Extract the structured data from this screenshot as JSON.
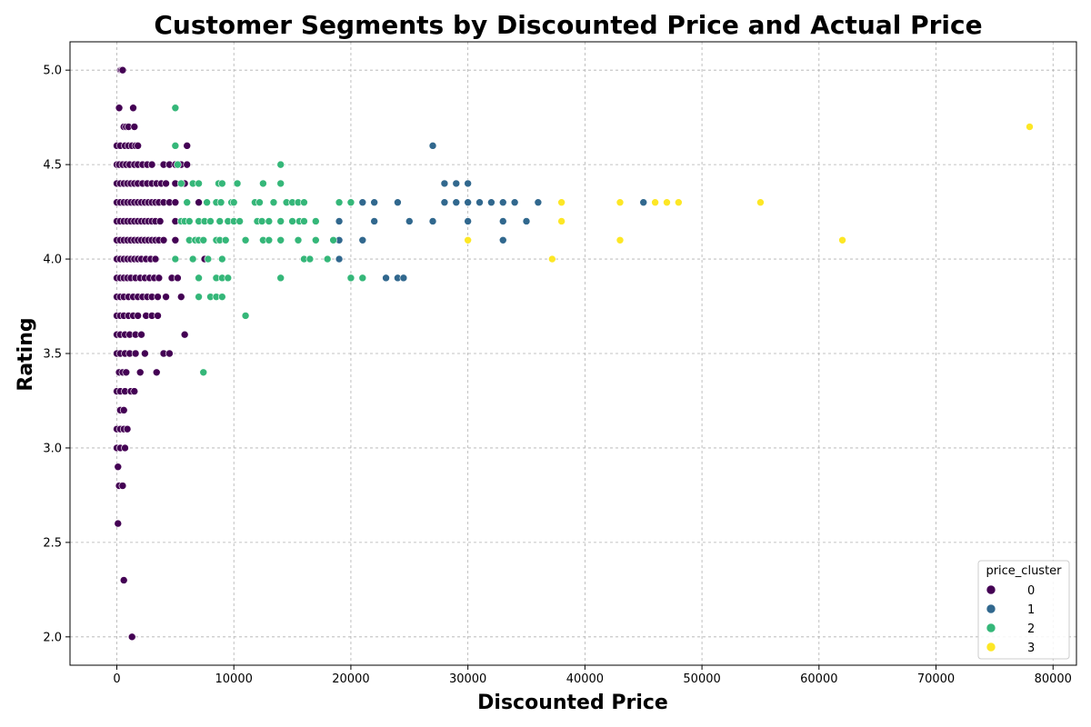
{
  "chart_data": {
    "type": "scatter",
    "title": "Customer Segments by Discounted Price and Actual Price",
    "xlabel": "Discounted Price",
    "ylabel": "Rating",
    "xlim": [
      -4000,
      82000
    ],
    "ylim": [
      1.85,
      5.15
    ],
    "xticks": [
      0,
      10000,
      20000,
      30000,
      40000,
      50000,
      60000,
      70000,
      80000
    ],
    "yticks": [
      2.0,
      2.5,
      3.0,
      3.5,
      4.0,
      4.5,
      5.0
    ],
    "xtick_labels": [
      "0",
      "10000",
      "20000",
      "30000",
      "40000",
      "50000",
      "60000",
      "70000",
      "80000"
    ],
    "ytick_labels": [
      "2.0",
      "2.5",
      "3.0",
      "3.5",
      "4.0",
      "4.5",
      "5.0"
    ],
    "grid": true,
    "legend": {
      "title": "price_cluster",
      "placement": "bottom-right"
    },
    "series": [
      {
        "name": "0",
        "color": "#440154",
        "points": [
          [
            300,
            5.0
          ],
          [
            400,
            5.0
          ],
          [
            500,
            5.0
          ],
          [
            200,
            4.8
          ],
          [
            1400,
            4.8
          ],
          [
            600,
            4.7
          ],
          [
            800,
            4.7
          ],
          [
            1000,
            4.7
          ],
          [
            1500,
            4.7
          ],
          [
            0,
            4.6
          ],
          [
            300,
            4.6
          ],
          [
            700,
            4.6
          ],
          [
            1000,
            4.6
          ],
          [
            1300,
            4.6
          ],
          [
            1600,
            4.6
          ],
          [
            1800,
            4.6
          ],
          [
            6000,
            4.6
          ],
          [
            0,
            4.5
          ],
          [
            200,
            4.5
          ],
          [
            500,
            4.5
          ],
          [
            800,
            4.5
          ],
          [
            1100,
            4.5
          ],
          [
            1500,
            4.5
          ],
          [
            1800,
            4.5
          ],
          [
            2200,
            4.5
          ],
          [
            2600,
            4.5
          ],
          [
            3000,
            4.5
          ],
          [
            4000,
            4.5
          ],
          [
            4500,
            4.5
          ],
          [
            5000,
            4.5
          ],
          [
            5500,
            4.5
          ],
          [
            6000,
            4.5
          ],
          [
            0,
            4.4
          ],
          [
            300,
            4.4
          ],
          [
            600,
            4.4
          ],
          [
            900,
            4.4
          ],
          [
            1200,
            4.4
          ],
          [
            1500,
            4.4
          ],
          [
            1800,
            4.4
          ],
          [
            2200,
            4.4
          ],
          [
            2600,
            4.4
          ],
          [
            3000,
            4.4
          ],
          [
            3400,
            4.4
          ],
          [
            3800,
            4.4
          ],
          [
            4200,
            4.4
          ],
          [
            5000,
            4.4
          ],
          [
            5800,
            4.4
          ],
          [
            6500,
            4.4
          ],
          [
            0,
            4.3
          ],
          [
            300,
            4.3
          ],
          [
            600,
            4.3
          ],
          [
            900,
            4.3
          ],
          [
            1200,
            4.3
          ],
          [
            1500,
            4.3
          ],
          [
            1800,
            4.3
          ],
          [
            2100,
            4.3
          ],
          [
            2400,
            4.3
          ],
          [
            2700,
            4.3
          ],
          [
            3000,
            4.3
          ],
          [
            3300,
            4.3
          ],
          [
            3600,
            4.3
          ],
          [
            4000,
            4.3
          ],
          [
            4500,
            4.3
          ],
          [
            5000,
            4.3
          ],
          [
            6000,
            4.3
          ],
          [
            7000,
            4.3
          ],
          [
            0,
            4.2
          ],
          [
            300,
            4.2
          ],
          [
            600,
            4.2
          ],
          [
            900,
            4.2
          ],
          [
            1200,
            4.2
          ],
          [
            1500,
            4.2
          ],
          [
            1800,
            4.2
          ],
          [
            2100,
            4.2
          ],
          [
            2400,
            4.2
          ],
          [
            2700,
            4.2
          ],
          [
            3000,
            4.2
          ],
          [
            3300,
            4.2
          ],
          [
            3700,
            4.2
          ],
          [
            5000,
            4.2
          ],
          [
            0,
            4.1
          ],
          [
            300,
            4.1
          ],
          [
            600,
            4.1
          ],
          [
            900,
            4.1
          ],
          [
            1200,
            4.1
          ],
          [
            1500,
            4.1
          ],
          [
            1800,
            4.1
          ],
          [
            2100,
            4.1
          ],
          [
            2400,
            4.1
          ],
          [
            2700,
            4.1
          ],
          [
            3000,
            4.1
          ],
          [
            3300,
            4.1
          ],
          [
            3600,
            4.1
          ],
          [
            4000,
            4.1
          ],
          [
            5000,
            4.1
          ],
          [
            0,
            4.0
          ],
          [
            300,
            4.0
          ],
          [
            600,
            4.0
          ],
          [
            900,
            4.0
          ],
          [
            1200,
            4.0
          ],
          [
            1500,
            4.0
          ],
          [
            1800,
            4.0
          ],
          [
            2100,
            4.0
          ],
          [
            2500,
            4.0
          ],
          [
            2900,
            4.0
          ],
          [
            3300,
            4.0
          ],
          [
            7500,
            4.0
          ],
          [
            0,
            3.9
          ],
          [
            300,
            3.9
          ],
          [
            600,
            3.9
          ],
          [
            900,
            3.9
          ],
          [
            1200,
            3.9
          ],
          [
            1600,
            3.9
          ],
          [
            2000,
            3.9
          ],
          [
            2400,
            3.9
          ],
          [
            2800,
            3.9
          ],
          [
            3200,
            3.9
          ],
          [
            3600,
            3.9
          ],
          [
            4700,
            3.9
          ],
          [
            5200,
            3.9
          ],
          [
            0,
            3.8
          ],
          [
            300,
            3.8
          ],
          [
            600,
            3.8
          ],
          [
            1000,
            3.8
          ],
          [
            1400,
            3.8
          ],
          [
            1800,
            3.8
          ],
          [
            2200,
            3.8
          ],
          [
            2600,
            3.8
          ],
          [
            3000,
            3.8
          ],
          [
            3500,
            3.8
          ],
          [
            4200,
            3.8
          ],
          [
            5500,
            3.8
          ],
          [
            0,
            3.7
          ],
          [
            300,
            3.7
          ],
          [
            600,
            3.7
          ],
          [
            1000,
            3.7
          ],
          [
            1400,
            3.7
          ],
          [
            1800,
            3.7
          ],
          [
            2500,
            3.7
          ],
          [
            3000,
            3.7
          ],
          [
            3500,
            3.7
          ],
          [
            0,
            3.6
          ],
          [
            300,
            3.6
          ],
          [
            700,
            3.6
          ],
          [
            1100,
            3.6
          ],
          [
            1600,
            3.6
          ],
          [
            2100,
            3.6
          ],
          [
            5800,
            3.6
          ],
          [
            0,
            3.5
          ],
          [
            300,
            3.5
          ],
          [
            700,
            3.5
          ],
          [
            1100,
            3.5
          ],
          [
            1600,
            3.5
          ],
          [
            2400,
            3.5
          ],
          [
            4000,
            3.5
          ],
          [
            4500,
            3.5
          ],
          [
            200,
            3.4
          ],
          [
            500,
            3.4
          ],
          [
            800,
            3.4
          ],
          [
            2000,
            3.4
          ],
          [
            3400,
            3.4
          ],
          [
            0,
            3.3
          ],
          [
            300,
            3.3
          ],
          [
            700,
            3.3
          ],
          [
            1200,
            3.3
          ],
          [
            1500,
            3.3
          ],
          [
            0,
            3.1
          ],
          [
            300,
            3.1
          ],
          [
            600,
            3.1
          ],
          [
            900,
            3.1
          ],
          [
            300,
            3.2
          ],
          [
            600,
            3.2
          ],
          [
            0,
            3.0
          ],
          [
            300,
            3.0
          ],
          [
            700,
            3.0
          ],
          [
            100,
            2.9
          ],
          [
            200,
            2.8
          ],
          [
            500,
            2.8
          ],
          [
            100,
            2.6
          ],
          [
            600,
            2.3
          ],
          [
            1300,
            2.0
          ]
        ]
      },
      {
        "name": "1",
        "color": "#31688e",
        "points": [
          [
            27000,
            4.6
          ],
          [
            28000,
            4.4
          ],
          [
            29000,
            4.4
          ],
          [
            30000,
            4.4
          ],
          [
            14500,
            4.3
          ],
          [
            21000,
            4.3
          ],
          [
            22000,
            4.3
          ],
          [
            24000,
            4.3
          ],
          [
            28000,
            4.3
          ],
          [
            29000,
            4.3
          ],
          [
            30000,
            4.3
          ],
          [
            31000,
            4.3
          ],
          [
            32000,
            4.3
          ],
          [
            33000,
            4.3
          ],
          [
            34000,
            4.3
          ],
          [
            36000,
            4.3
          ],
          [
            45000,
            4.3
          ],
          [
            19000,
            4.2
          ],
          [
            22000,
            4.2
          ],
          [
            25000,
            4.2
          ],
          [
            27000,
            4.2
          ],
          [
            30000,
            4.2
          ],
          [
            33000,
            4.2
          ],
          [
            35000,
            4.2
          ],
          [
            19000,
            4.1
          ],
          [
            21000,
            4.1
          ],
          [
            33000,
            4.1
          ],
          [
            19000,
            4.0
          ],
          [
            23000,
            3.9
          ],
          [
            24000,
            3.9
          ],
          [
            24500,
            3.9
          ]
        ]
      },
      {
        "name": "2",
        "color": "#35b779",
        "points": [
          [
            5000,
            4.8
          ],
          [
            5000,
            4.6
          ],
          [
            14000,
            4.5
          ],
          [
            5200,
            4.5
          ],
          [
            5500,
            4.4
          ],
          [
            6500,
            4.4
          ],
          [
            7000,
            4.4
          ],
          [
            8700,
            4.4
          ],
          [
            9000,
            4.4
          ],
          [
            10300,
            4.4
          ],
          [
            12500,
            4.4
          ],
          [
            14000,
            4.4
          ],
          [
            6000,
            4.3
          ],
          [
            7700,
            4.3
          ],
          [
            8500,
            4.3
          ],
          [
            8900,
            4.3
          ],
          [
            9800,
            4.3
          ],
          [
            10000,
            4.3
          ],
          [
            11800,
            4.3
          ],
          [
            12200,
            4.3
          ],
          [
            13400,
            4.3
          ],
          [
            14500,
            4.3
          ],
          [
            15000,
            4.3
          ],
          [
            15500,
            4.3
          ],
          [
            16000,
            4.3
          ],
          [
            19000,
            4.3
          ],
          [
            20000,
            4.3
          ],
          [
            5500,
            4.2
          ],
          [
            5800,
            4.2
          ],
          [
            6200,
            4.2
          ],
          [
            7000,
            4.2
          ],
          [
            7500,
            4.2
          ],
          [
            8000,
            4.2
          ],
          [
            8800,
            4.2
          ],
          [
            9500,
            4.2
          ],
          [
            10000,
            4.2
          ],
          [
            10500,
            4.2
          ],
          [
            12000,
            4.2
          ],
          [
            12400,
            4.2
          ],
          [
            13000,
            4.2
          ],
          [
            14000,
            4.2
          ],
          [
            15000,
            4.2
          ],
          [
            15600,
            4.2
          ],
          [
            16000,
            4.2
          ],
          [
            17000,
            4.2
          ],
          [
            6200,
            4.1
          ],
          [
            6700,
            4.1
          ],
          [
            7000,
            4.1
          ],
          [
            7400,
            4.1
          ],
          [
            8500,
            4.1
          ],
          [
            8800,
            4.1
          ],
          [
            9300,
            4.1
          ],
          [
            11000,
            4.1
          ],
          [
            12500,
            4.1
          ],
          [
            13000,
            4.1
          ],
          [
            14000,
            4.1
          ],
          [
            15500,
            4.1
          ],
          [
            17000,
            4.1
          ],
          [
            18500,
            4.1
          ],
          [
            5000,
            4.0
          ],
          [
            6500,
            4.0
          ],
          [
            7800,
            4.0
          ],
          [
            9000,
            4.0
          ],
          [
            16000,
            4.0
          ],
          [
            16500,
            4.0
          ],
          [
            18000,
            4.0
          ],
          [
            7000,
            3.9
          ],
          [
            8500,
            3.9
          ],
          [
            9000,
            3.9
          ],
          [
            9500,
            3.9
          ],
          [
            14000,
            3.9
          ],
          [
            20000,
            3.9
          ],
          [
            21000,
            3.9
          ],
          [
            7000,
            3.8
          ],
          [
            8000,
            3.8
          ],
          [
            8500,
            3.8
          ],
          [
            9000,
            3.8
          ],
          [
            11000,
            3.7
          ],
          [
            7400,
            3.4
          ]
        ]
      },
      {
        "name": "3",
        "color": "#fde725",
        "points": [
          [
            78000,
            4.7
          ],
          [
            38000,
            4.3
          ],
          [
            43000,
            4.3
          ],
          [
            46000,
            4.3
          ],
          [
            47000,
            4.3
          ],
          [
            48000,
            4.3
          ],
          [
            55000,
            4.3
          ],
          [
            38000,
            4.2
          ],
          [
            30000,
            4.1
          ],
          [
            43000,
            4.1
          ],
          [
            62000,
            4.1
          ],
          [
            37200,
            4.0
          ]
        ]
      }
    ]
  }
}
